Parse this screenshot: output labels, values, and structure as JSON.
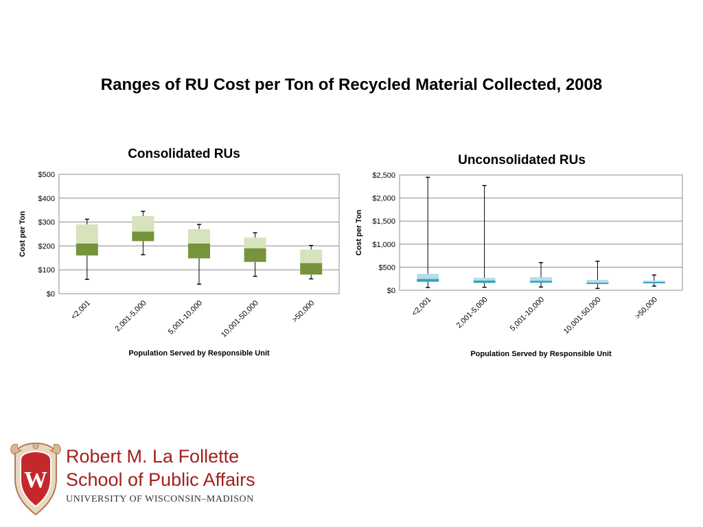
{
  "page": {
    "title": "Ranges of RU Cost per Ton of Recycled Material Collected, 2008"
  },
  "logo": {
    "line1": "Robert M. La Follette",
    "line2": "School of Public Affairs",
    "line3": "UNIVERSITY OF WISCONSIN–MADISON",
    "crest_letter": "W"
  },
  "colors": {
    "consolidated_upper": "#d6e3bc",
    "consolidated_lower": "#77933c",
    "unconsolidated_upper": "#b7dee8",
    "unconsolidated_lower": "#31a3bf"
  },
  "chart_data": [
    {
      "type": "box",
      "title": "Consolidated RUs",
      "xlabel": "Population Served by Responsible Unit",
      "ylabel": "Cost per Ton",
      "ylim": [
        0,
        500
      ],
      "yticks": [
        "$0",
        "$100",
        "$200",
        "$300",
        "$400",
        "$500"
      ],
      "grid": true,
      "categories": [
        "<2,001",
        "2,001-5,000",
        "5,001-10,000",
        "10,001-50,000",
        ">50,000"
      ],
      "boxes": [
        {
          "min": 60,
          "q1": 160,
          "median": 210,
          "q3": 290,
          "max": 312
        },
        {
          "min": 163,
          "q1": 220,
          "median": 260,
          "q3": 325,
          "max": 345
        },
        {
          "min": 40,
          "q1": 148,
          "median": 210,
          "q3": 270,
          "max": 290
        },
        {
          "min": 73,
          "q1": 133,
          "median": 190,
          "q3": 235,
          "max": 255
        },
        {
          "min": 62,
          "q1": 80,
          "median": 128,
          "q3": 185,
          "max": 202
        }
      ]
    },
    {
      "type": "box",
      "title": "Unconsolidated RUs",
      "xlabel": "Population Served by Responsible Unit",
      "ylabel": "Cost per Ton",
      "ylim": [
        0,
        2500
      ],
      "yticks": [
        "$0",
        "$500",
        "$1,000",
        "$1,500",
        "$2,000",
        "$2,500"
      ],
      "grid": true,
      "categories": [
        "<2,001",
        "2,001-5,000",
        "5,001-10,000",
        "10,001-50,000",
        ">50,000"
      ],
      "boxes": [
        {
          "min": 60,
          "q1": 185,
          "median": 245,
          "q3": 355,
          "max": 2450
        },
        {
          "min": 65,
          "q1": 160,
          "median": 210,
          "q3": 270,
          "max": 2270
        },
        {
          "min": 70,
          "q1": 165,
          "median": 205,
          "q3": 285,
          "max": 600
        },
        {
          "min": 40,
          "q1": 135,
          "median": 165,
          "q3": 225,
          "max": 630
        },
        {
          "min": 90,
          "q1": 150,
          "median": 180,
          "q3": 210,
          "max": 330
        }
      ]
    }
  ]
}
